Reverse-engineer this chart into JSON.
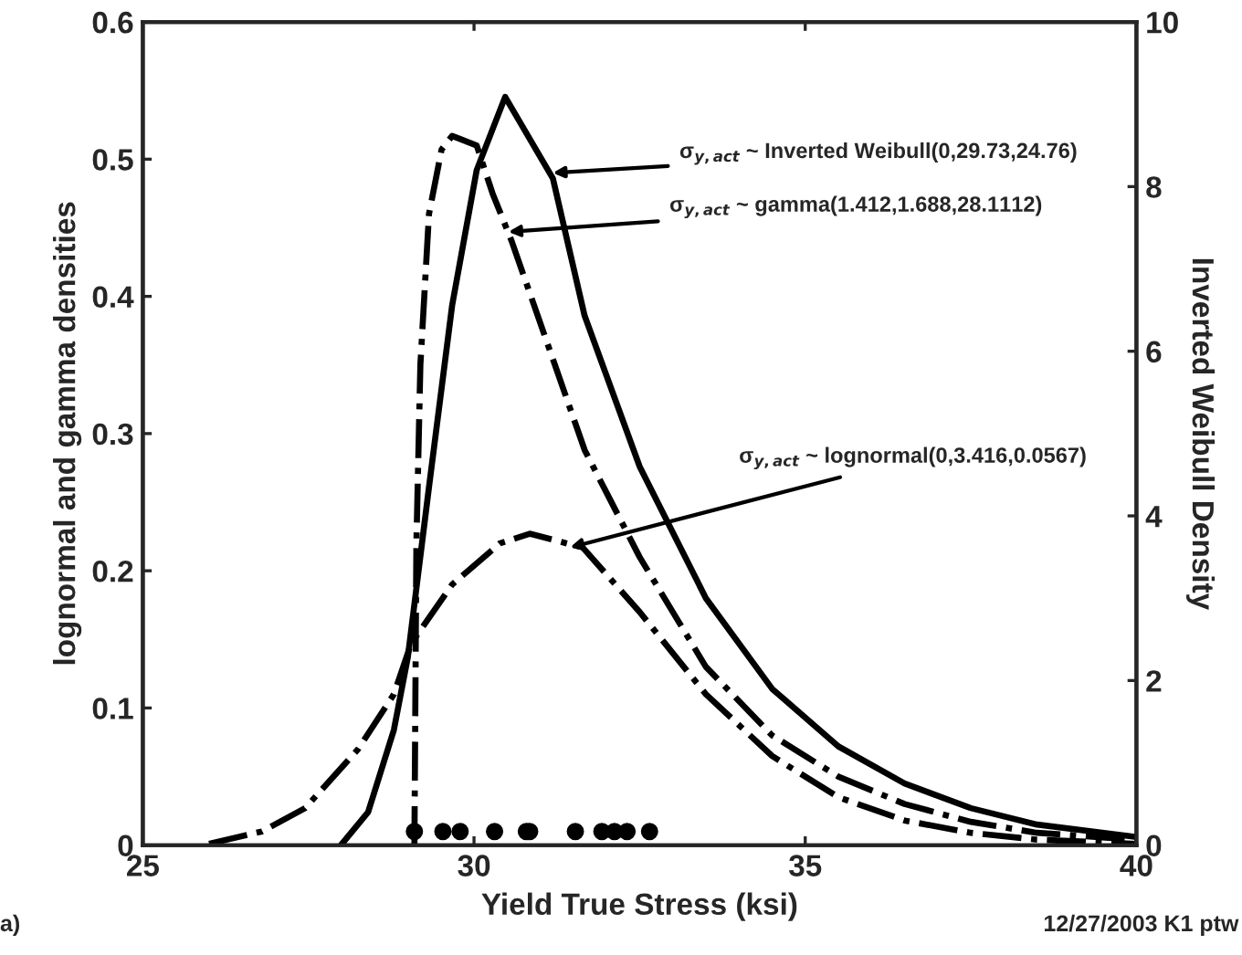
{
  "chart_data": {
    "type": "line",
    "xlabel": "Yield True Stress (ksi)",
    "ylabel": "lognormal and gamma densities",
    "y2label": "Inverted Weibull Density",
    "xlim": [
      25,
      40
    ],
    "xticks": [
      25,
      30,
      35,
      40
    ],
    "ylim": [
      0,
      0.6
    ],
    "yticks": [
      0,
      0.1,
      0.2,
      0.3,
      0.4,
      0.5,
      0.6
    ],
    "y2lim": [
      0,
      10
    ],
    "y2ticks": [
      0,
      2,
      4,
      6,
      8,
      10
    ],
    "grid": false,
    "legend": false,
    "series": [
      {
        "axis": "y2",
        "color": "#000000",
        "line_style": "solid",
        "x": [
          27.99,
          28.4,
          28.79,
          29.0,
          29.32,
          29.67,
          30.04,
          30.47,
          31.19,
          31.67,
          32.5,
          33.5,
          34.5,
          35.5,
          36.5,
          37.5,
          38.5,
          40
        ],
        "values": [
          0,
          0.4,
          1.4,
          2.28,
          4.35,
          6.56,
          8.2,
          9.09,
          8.1,
          6.43,
          4.6,
          3.0,
          1.9,
          1.2,
          0.75,
          0.45,
          0.25,
          0.1
        ]
      },
      {
        "color": "#000000",
        "line_style": "dashdot",
        "x": [
          29.1,
          29.13,
          29.19,
          29.32,
          29.51,
          29.67,
          30.04,
          30.28,
          30.57,
          31.67,
          32.5,
          33.5,
          34.5,
          35.5,
          36.5,
          37.5,
          38.5,
          40
        ],
        "values": [
          0,
          0.22,
          0.35,
          0.46,
          0.507,
          0.517,
          0.51,
          0.475,
          0.44,
          0.288,
          0.21,
          0.13,
          0.08,
          0.05,
          0.03,
          0.017,
          0.009,
          0.004
        ]
      },
      {
        "color": "#000000",
        "line_style": "dashdot",
        "x": [
          26.0,
          26.8,
          27.45,
          28.25,
          28.79,
          29.05,
          29.67,
          30.39,
          30.84,
          31.64,
          32.5,
          33.5,
          34.5,
          35.5,
          36.5,
          37.5,
          38.5,
          40
        ],
        "values": [
          0.001,
          0.01,
          0.027,
          0.07,
          0.11,
          0.147,
          0.19,
          0.22,
          0.227,
          0.217,
          0.17,
          0.11,
          0.065,
          0.035,
          0.018,
          0.009,
          0.004,
          0.001
        ]
      },
      {
        "type": "scatter",
        "color": "#000000",
        "marker": "circle",
        "x": [
          29.1,
          29.53,
          29.79,
          30.31,
          30.79,
          30.84,
          31.53,
          31.93,
          32.12,
          32.31,
          32.65
        ],
        "values": [
          0.01,
          0.01,
          0.01,
          0.01,
          0.01,
          0.01,
          0.01,
          0.01,
          0.01,
          0.01,
          0.01
        ]
      }
    ],
    "annotations": [
      {
        "text": "σ$_{y,act}$ ~ Inverted Weibull(0,29.73,24.76)",
        "x": 31.19,
        "y": 0.49
      },
      {
        "text": "σ$_{y,act}$ ~ gamma(1.412,1.688,28.1112)",
        "x": 30.52,
        "y": 0.447
      },
      {
        "text": "σ$_{y,act}$ ~ lognormal(0,3.416,0.0567)",
        "x": 31.45,
        "y": 0.217
      },
      "12/27/2003 K1 ptw",
      "a)"
    ]
  }
}
